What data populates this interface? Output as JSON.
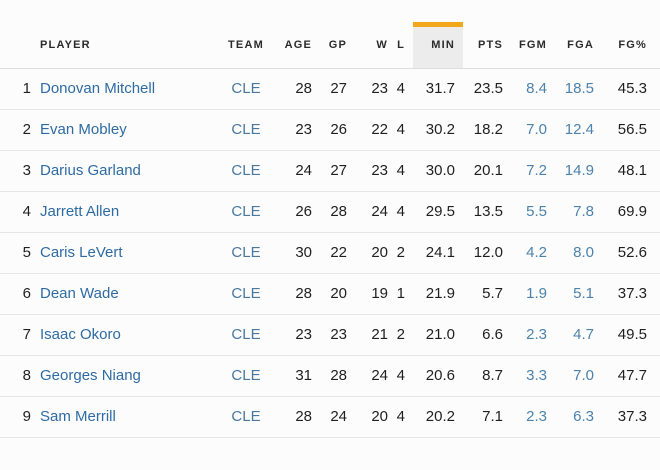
{
  "colors": {
    "accent_orange": "#F2A71B",
    "sorted_column_bg": "#ECECEC",
    "player_link_blue": "#2E6BA3",
    "team_link_blue": "#49789E",
    "shooting_stat_blue": "#4D82AB",
    "text_dark": "#1F1F1F",
    "row_divider": "#E6E6E6",
    "page_background": "#FCFCFC"
  },
  "table": {
    "sorted_column": "MIN",
    "headers": {
      "rank": "",
      "player": "PLAYER",
      "team": "TEAM",
      "age": "AGE",
      "gp": "GP",
      "w": "W",
      "l": "L",
      "min": "MIN",
      "pts": "PTS",
      "fgm": "FGM",
      "fga": "FGA",
      "fgpct": "FG%"
    },
    "rows": [
      {
        "rank": "1",
        "player": "Donovan Mitchell",
        "team": "CLE",
        "age": "28",
        "gp": "27",
        "w": "23",
        "l": "4",
        "min": "31.7",
        "pts": "23.5",
        "fgm": "8.4",
        "fga": "18.5",
        "fgpct": "45.3"
      },
      {
        "rank": "2",
        "player": "Evan Mobley",
        "team": "CLE",
        "age": "23",
        "gp": "26",
        "w": "22",
        "l": "4",
        "min": "30.2",
        "pts": "18.2",
        "fgm": "7.0",
        "fga": "12.4",
        "fgpct": "56.5"
      },
      {
        "rank": "3",
        "player": "Darius Garland",
        "team": "CLE",
        "age": "24",
        "gp": "27",
        "w": "23",
        "l": "4",
        "min": "30.0",
        "pts": "20.1",
        "fgm": "7.2",
        "fga": "14.9",
        "fgpct": "48.1"
      },
      {
        "rank": "4",
        "player": "Jarrett Allen",
        "team": "CLE",
        "age": "26",
        "gp": "28",
        "w": "24",
        "l": "4",
        "min": "29.5",
        "pts": "13.5",
        "fgm": "5.5",
        "fga": "7.8",
        "fgpct": "69.9"
      },
      {
        "rank": "5",
        "player": "Caris LeVert",
        "team": "CLE",
        "age": "30",
        "gp": "22",
        "w": "20",
        "l": "2",
        "min": "24.1",
        "pts": "12.0",
        "fgm": "4.2",
        "fga": "8.0",
        "fgpct": "52.6"
      },
      {
        "rank": "6",
        "player": "Dean Wade",
        "team": "CLE",
        "age": "28",
        "gp": "20",
        "w": "19",
        "l": "1",
        "min": "21.9",
        "pts": "5.7",
        "fgm": "1.9",
        "fga": "5.1",
        "fgpct": "37.3"
      },
      {
        "rank": "7",
        "player": "Isaac Okoro",
        "team": "CLE",
        "age": "23",
        "gp": "23",
        "w": "21",
        "l": "2",
        "min": "21.0",
        "pts": "6.6",
        "fgm": "2.3",
        "fga": "4.7",
        "fgpct": "49.5"
      },
      {
        "rank": "8",
        "player": "Georges Niang",
        "team": "CLE",
        "age": "31",
        "gp": "28",
        "w": "24",
        "l": "4",
        "min": "20.6",
        "pts": "8.7",
        "fgm": "3.3",
        "fga": "7.0",
        "fgpct": "47.7"
      },
      {
        "rank": "9",
        "player": "Sam Merrill",
        "team": "CLE",
        "age": "28",
        "gp": "24",
        "w": "20",
        "l": "4",
        "min": "20.2",
        "pts": "7.1",
        "fgm": "2.3",
        "fga": "6.3",
        "fgpct": "37.3"
      }
    ]
  }
}
